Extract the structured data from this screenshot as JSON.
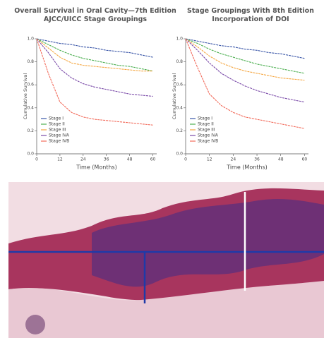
{
  "chart_data": [
    {
      "type": "line",
      "title": "Overall Survival in Oral Cavity—7th Edition AJCC/UICC Stage Groupings",
      "xlabel": "Time (Months)",
      "ylabel": "Cumulative Survival",
      "x": [
        0,
        6,
        12,
        18,
        24,
        30,
        36,
        42,
        48,
        54,
        60
      ],
      "xlim": [
        0,
        62
      ],
      "xticks": [
        0,
        12,
        24,
        36,
        48,
        60
      ],
      "ylim": [
        0,
        1
      ],
      "yticks": [
        {
          "value": 0,
          "label": "0.0"
        },
        {
          "value": 0.2,
          "label": "0.2"
        },
        {
          "value": 0.4,
          "label": "0.4"
        },
        {
          "value": 0.6,
          "label": "0.6"
        },
        {
          "value": 0.8,
          "label": "0.8"
        },
        {
          "value": 1,
          "label": "1.0"
        }
      ],
      "legend": "lower left",
      "series": [
        {
          "name": "Stage I",
          "color": "#3a56a8",
          "values": [
            1,
            0.98,
            0.96,
            0.95,
            0.93,
            0.92,
            0.9,
            0.89,
            0.88,
            0.86,
            0.84
          ]
        },
        {
          "name": "Stage II",
          "color": "#4caf50",
          "values": [
            1,
            0.95,
            0.9,
            0.86,
            0.83,
            0.81,
            0.79,
            0.77,
            0.76,
            0.74,
            0.72
          ]
        },
        {
          "name": "Stage III",
          "color": "#f5a742",
          "values": [
            1,
            0.92,
            0.84,
            0.79,
            0.77,
            0.76,
            0.75,
            0.74,
            0.73,
            0.72,
            0.72
          ]
        },
        {
          "name": "Stage IVA",
          "color": "#7a4aa8",
          "values": [
            1,
            0.88,
            0.74,
            0.66,
            0.61,
            0.58,
            0.56,
            0.54,
            0.52,
            0.51,
            0.5
          ]
        },
        {
          "name": "Stage IVB",
          "color": "#f26b5b",
          "values": [
            1,
            0.7,
            0.45,
            0.36,
            0.32,
            0.3,
            0.29,
            0.28,
            0.27,
            0.26,
            0.25
          ]
        }
      ]
    },
    {
      "type": "line",
      "title": "Stage Groupings With 8th Edition Incorporation of DOI",
      "xlabel": "Time (Months)",
      "ylabel": "Cumulative Survival",
      "x": [
        0,
        6,
        12,
        18,
        24,
        30,
        36,
        42,
        48,
        54,
        60
      ],
      "xlim": [
        0,
        62
      ],
      "xticks": [
        0,
        12,
        24,
        36,
        48,
        60
      ],
      "ylim": [
        0,
        1
      ],
      "yticks": [
        {
          "value": 0,
          "label": "0.0"
        },
        {
          "value": 0.2,
          "label": "0.2"
        },
        {
          "value": 0.4,
          "label": "0.4"
        },
        {
          "value": 0.6,
          "label": "0.6"
        },
        {
          "value": 0.8,
          "label": "0.8"
        },
        {
          "value": 1,
          "label": "1.0"
        }
      ],
      "legend": "lower left",
      "series": [
        {
          "name": "Stage I",
          "color": "#3a56a8",
          "values": [
            1,
            0.98,
            0.96,
            0.94,
            0.93,
            0.91,
            0.9,
            0.88,
            0.87,
            0.85,
            0.83
          ]
        },
        {
          "name": "Stage II",
          "color": "#4caf50",
          "values": [
            1,
            0.96,
            0.91,
            0.87,
            0.84,
            0.81,
            0.78,
            0.76,
            0.74,
            0.72,
            0.7
          ]
        },
        {
          "name": "Stage III",
          "color": "#f5a742",
          "values": [
            1,
            0.93,
            0.85,
            0.79,
            0.75,
            0.72,
            0.7,
            0.68,
            0.66,
            0.65,
            0.64
          ]
        },
        {
          "name": "Stage IVA",
          "color": "#7a4aa8",
          "values": [
            1,
            0.9,
            0.79,
            0.7,
            0.64,
            0.59,
            0.55,
            0.52,
            0.49,
            0.47,
            0.45
          ]
        },
        {
          "name": "Stage IVB",
          "color": "#f26b5b",
          "values": [
            1,
            0.75,
            0.52,
            0.42,
            0.36,
            0.32,
            0.3,
            0.28,
            0.26,
            0.24,
            0.22
          ]
        }
      ]
    }
  ]
}
